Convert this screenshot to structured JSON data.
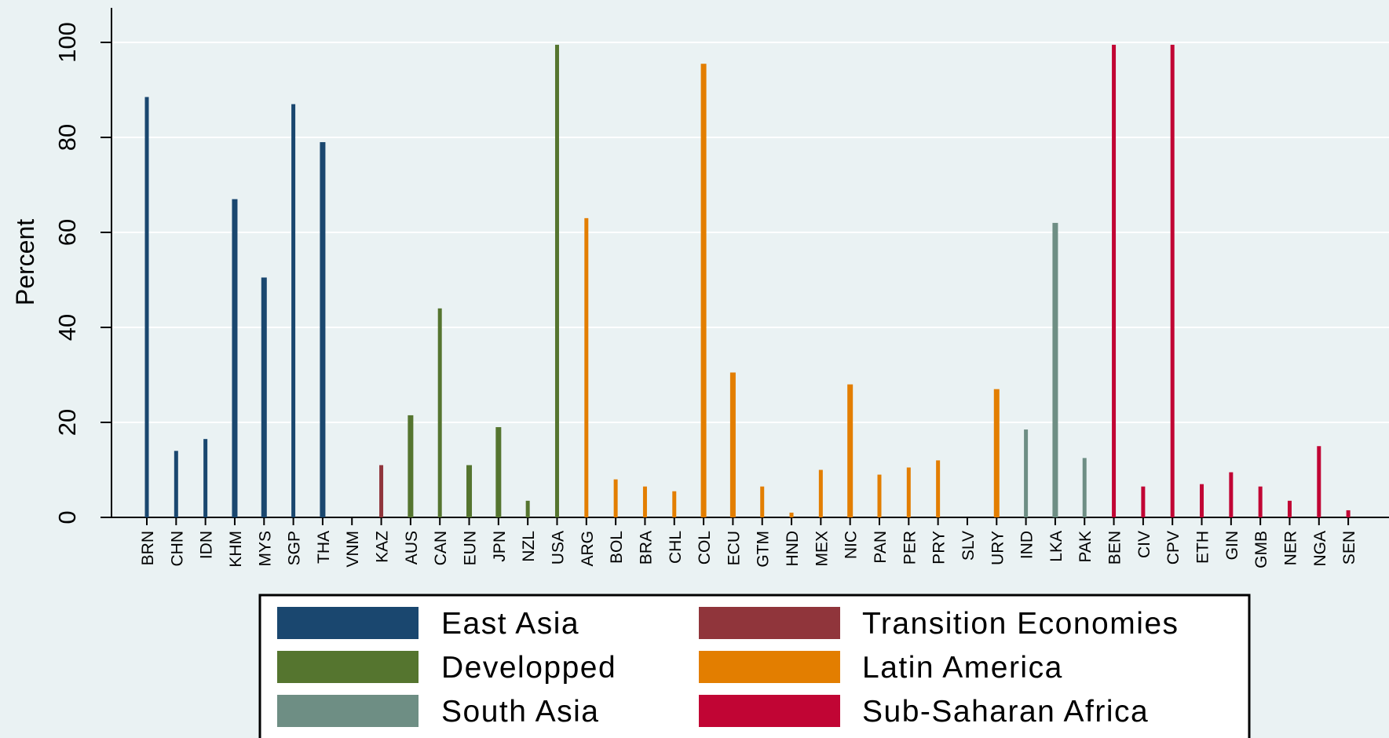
{
  "chart_data": {
    "type": "bar",
    "title": "",
    "xlabel": "",
    "ylabel": "Percent",
    "ylim": [
      0,
      100
    ],
    "yticks": [
      0,
      20,
      40,
      60,
      80,
      100
    ],
    "grid": true,
    "legend_position": "bottom",
    "categories": [
      "BRN",
      "CHN",
      "IDN",
      "KHM",
      "MYS",
      "SGP",
      "THA",
      "VNM",
      "KAZ",
      "AUS",
      "CAN",
      "EUN",
      "JPN",
      "NZL",
      "USA",
      "ARG",
      "BOL",
      "BRA",
      "CHL",
      "COL",
      "ECU",
      "GTM",
      "HND",
      "MEX",
      "NIC",
      "PAN",
      "PER",
      "PRY",
      "SLV",
      "URY",
      "IND",
      "LKA",
      "PAK",
      "BEN",
      "CIV",
      "CPV",
      "ETH",
      "GIN",
      "GMB",
      "NER",
      "NGA",
      "SEN"
    ],
    "values": [
      88.5,
      14,
      16.5,
      67,
      50.5,
      87,
      79,
      0,
      11,
      21.5,
      44,
      11,
      19,
      3.5,
      99.5,
      63,
      8,
      6.5,
      5.5,
      95.5,
      30.5,
      6.5,
      1,
      10,
      28,
      9,
      10.5,
      12,
      0,
      27,
      18.5,
      62,
      12.5,
      99.5,
      6.5,
      99.5,
      7,
      9.5,
      6.5,
      3.5,
      15,
      1.5
    ],
    "groups": [
      "East Asia",
      "East Asia",
      "East Asia",
      "East Asia",
      "East Asia",
      "East Asia",
      "East Asia",
      "East Asia",
      "Transition Economies",
      "Developped",
      "Developped",
      "Developped",
      "Developped",
      "Developped",
      "Developped",
      "Latin America",
      "Latin America",
      "Latin America",
      "Latin America",
      "Latin America",
      "Latin America",
      "Latin America",
      "Latin America",
      "Latin America",
      "Latin America",
      "Latin America",
      "Latin America",
      "Latin America",
      "Latin America",
      "Latin America",
      "South Asia",
      "South Asia",
      "South Asia",
      "Sub-Saharan Africa",
      "Sub-Saharan Africa",
      "Sub-Saharan Africa",
      "Sub-Saharan Africa",
      "Sub-Saharan Africa",
      "Sub-Saharan Africa",
      "Sub-Saharan Africa",
      "Sub-Saharan Africa",
      "Sub-Saharan Africa"
    ],
    "series": [
      {
        "name": "East Asia",
        "color": "#1a476f"
      },
      {
        "name": "Transition Economies",
        "color": "#90353b"
      },
      {
        "name": "Developped",
        "color": "#55752f"
      },
      {
        "name": "Latin America",
        "color": "#e37e00"
      },
      {
        "name": "South Asia",
        "color": "#6e8e84"
      },
      {
        "name": "Sub-Saharan Africa",
        "color": "#c10534"
      }
    ]
  }
}
